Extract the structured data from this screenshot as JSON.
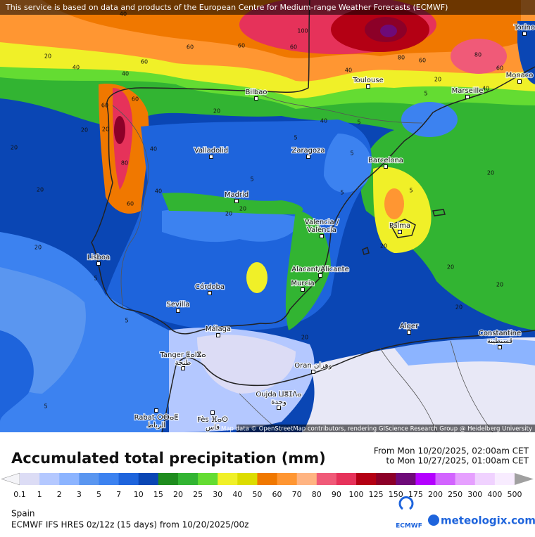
{
  "notice": "This service is based on data and products of the European Centre for Medium-range Weather Forecasts (ECMWF)",
  "attribution": "Map data © OpenStreetMap contributors, rendering GIScience Research Group @ Heidelberg University",
  "title": "Accumulated total precipitation (mm)",
  "period_from": "From Mon 10/20/2025, 02:00am CET",
  "period_to": "to Mon 10/27/2025, 01:00am CET",
  "legend": {
    "labels": [
      0.1,
      1,
      2,
      3,
      5,
      7,
      10,
      15,
      20,
      25,
      30,
      40,
      50,
      60,
      70,
      80,
      90,
      100,
      125,
      150,
      175,
      200,
      250,
      300,
      400,
      500
    ],
    "colors": [
      "#f4f4f8",
      "#dcdcf5",
      "#b4c8ff",
      "#8cb4ff",
      "#5a96f0",
      "#3c82f0",
      "#1e64dc",
      "#0a46b4",
      "#1e8c1e",
      "#32b432",
      "#64dc32",
      "#f0f028",
      "#dcdc00",
      "#f07800",
      "#ff9632",
      "#ffb482",
      "#f05a78",
      "#e6325a",
      "#b40014",
      "#8c0028",
      "#6e0a78",
      "#b400ff",
      "#d264ff",
      "#e6a0ff",
      "#f0d2ff",
      "#f8ecff",
      "#c8c8c8",
      "#a0a0a0"
    ]
  },
  "region": "Spain",
  "model": "ECMWF IFS HRES 0z/12z (15 days) from  10/20/2025/00z",
  "logos": [
    "ECMWF",
    "meteologix.com"
  ],
  "cities": [
    {
      "lines": [
        "Bilbao"
      ]
    },
    {
      "lines": [
        "Toulouse"
      ]
    },
    {
      "lines": [
        "Marseille"
      ]
    },
    {
      "lines": [
        "Monaco"
      ]
    },
    {
      "lines": [
        "Torino"
      ]
    },
    {
      "lines": [
        "Valladolid"
      ]
    },
    {
      "lines": [
        "Zaragoza"
      ]
    },
    {
      "lines": [
        "Barcelona"
      ]
    },
    {
      "lines": [
        "Madrid"
      ]
    },
    {
      "lines": [
        "Valencia /",
        "València"
      ]
    },
    {
      "lines": [
        "Palma"
      ]
    },
    {
      "lines": [
        "Lisboa"
      ]
    },
    {
      "lines": [
        "Alacant/Alicante"
      ]
    },
    {
      "lines": [
        "Murcia"
      ]
    },
    {
      "lines": [
        "Córdoba"
      ]
    },
    {
      "lines": [
        "Sevilla"
      ]
    },
    {
      "lines": [
        "Málaga"
      ]
    },
    {
      "lines": [
        "Alger"
      ]
    },
    {
      "lines": [
        "Constantine",
        "قسنطينة"
      ]
    },
    {
      "lines": [
        "Tanger ⵟⴰⵏⴵⴰ",
        "طنجة"
      ]
    },
    {
      "lines": [
        "Oran وهران"
      ]
    },
    {
      "lines": [
        "Oujda ⵡⴻⵊⴷⴰ",
        "وجدة"
      ]
    },
    {
      "lines": [
        "Rabat ⵔⴱⴰⵟ",
        "الرباط"
      ]
    },
    {
      "lines": [
        "Fès ⴼⴰⵙ",
        "فاس"
      ]
    }
  ],
  "contour_labels": [
    40,
    100,
    60,
    60,
    60,
    60,
    40,
    20,
    40,
    60,
    60,
    20,
    20,
    40,
    80,
    60,
    40,
    20,
    20,
    20,
    40,
    40,
    80,
    60,
    80,
    60,
    20,
    5,
    40,
    5,
    5,
    5,
    5,
    20,
    20,
    20,
    20,
    5,
    5,
    20,
    20,
    20,
    5,
    5,
    5,
    20,
    20
  ]
}
